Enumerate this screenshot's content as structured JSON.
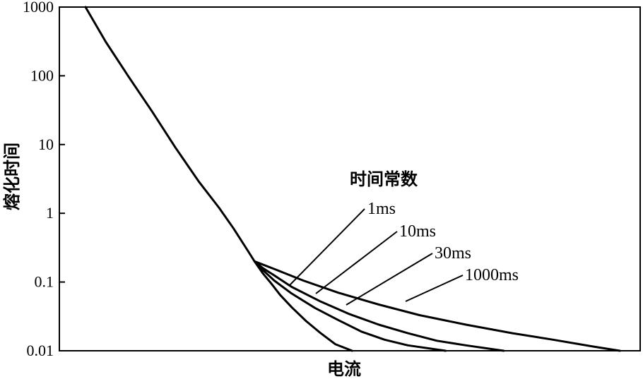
{
  "chart_data": {
    "type": "line",
    "xlabel": "电流",
    "ylabel": "熔化时间",
    "yscale": "log",
    "ylim": [
      0.01,
      1000
    ],
    "xlim": [
      0,
      100
    ],
    "y_ticks": [
      "1000",
      "100",
      "10",
      "1",
      "0.1",
      "0.01"
    ],
    "y_tick_values": [
      1000,
      100,
      10,
      1,
      0.1,
      0.01
    ],
    "x_ticks": [],
    "grid": false,
    "legend_title": "时间常数",
    "common_curve": {
      "x": [
        4.5,
        8,
        12,
        16,
        20,
        24,
        27.5,
        30,
        32.5,
        33.6
      ],
      "y": [
        1000,
        310,
        95,
        30,
        9,
        2.9,
        1.2,
        0.6,
        0.28,
        0.2
      ]
    },
    "series": [
      {
        "name": "1ms",
        "x": [
          33.6,
          35,
          36.5,
          38,
          40,
          42.5,
          45,
          47.5,
          50.4
        ],
        "y": [
          0.2,
          0.135,
          0.095,
          0.065,
          0.043,
          0.027,
          0.018,
          0.0125,
          0.01
        ]
      },
      {
        "name": "10ms",
        "x": [
          33.6,
          35,
          37,
          40,
          44,
          48,
          52,
          56,
          60,
          66.5
        ],
        "y": [
          0.2,
          0.15,
          0.105,
          0.068,
          0.042,
          0.028,
          0.019,
          0.0145,
          0.012,
          0.01
        ]
      },
      {
        "name": "30ms",
        "x": [
          33.6,
          35,
          37,
          40,
          45,
          50,
          55,
          60,
          65,
          70,
          76.5
        ],
        "y": [
          0.2,
          0.16,
          0.125,
          0.085,
          0.052,
          0.034,
          0.024,
          0.018,
          0.014,
          0.012,
          0.01
        ]
      },
      {
        "name": "1000ms",
        "x": [
          33.6,
          37,
          42,
          48,
          55,
          62,
          70,
          78,
          85,
          92,
          96.5
        ],
        "y": [
          0.2,
          0.155,
          0.105,
          0.07,
          0.047,
          0.033,
          0.024,
          0.018,
          0.0145,
          0.0115,
          0.01
        ]
      }
    ],
    "annotations": [
      {
        "text": "1ms",
        "points_to": "1ms"
      },
      {
        "text": "10ms",
        "points_to": "10ms"
      },
      {
        "text": "30ms",
        "points_to": "30ms"
      },
      {
        "text": "1000ms",
        "points_to": "1000ms"
      }
    ]
  }
}
